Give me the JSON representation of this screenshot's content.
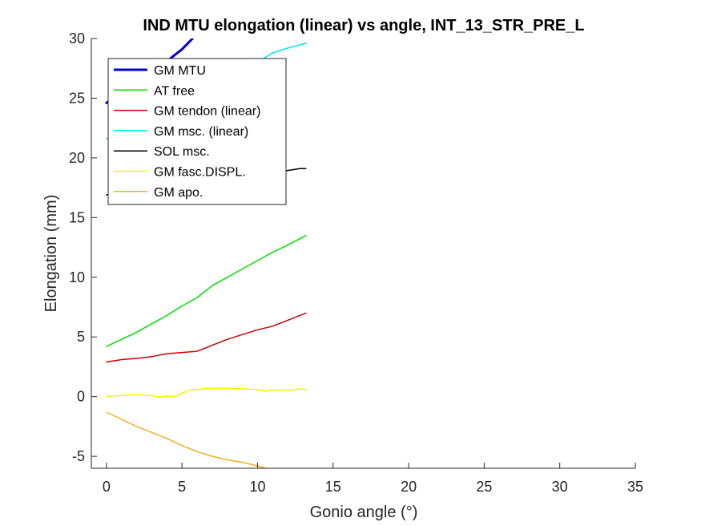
{
  "chart_data": {
    "type": "line",
    "title": "IND MTU elongation (linear) vs angle, INT_13_STR_PRE_L",
    "xlabel": "Gonio angle (°)",
    "ylabel": "Elongation (mm)",
    "xlim": [
      -1,
      35
    ],
    "ylim": [
      -6,
      30
    ],
    "xticks": [
      0,
      5,
      10,
      15,
      20,
      25,
      30,
      35
    ],
    "yticks": [
      -5,
      0,
      5,
      10,
      15,
      20,
      25,
      30
    ],
    "grid": false,
    "legend_position": "top-left",
    "series": [
      {
        "name": "GM MTU",
        "color": "#0000CD",
        "line_width": 3,
        "x": [
          0,
          1,
          2,
          3,
          4,
          5,
          5.7
        ],
        "y": [
          24.6,
          25.5,
          26.4,
          27.3,
          28.1,
          29.1,
          30.0
        ]
      },
      {
        "name": "AT free",
        "color": "#00E000",
        "line_width": 1.5,
        "x": [
          0,
          1,
          2,
          3,
          4,
          5,
          6,
          7,
          8,
          9,
          10,
          11,
          12,
          13.2
        ],
        "y": [
          4.2,
          4.8,
          5.4,
          6.1,
          6.8,
          7.6,
          8.3,
          9.3,
          10.0,
          10.7,
          11.4,
          12.1,
          12.7,
          13.5
        ]
      },
      {
        "name": "GM tendon (linear)",
        "color": "#CC0000",
        "line_width": 1.5,
        "x": [
          0,
          1,
          2,
          3,
          4,
          5,
          6,
          7,
          8,
          9,
          10,
          11,
          12,
          13.2
        ],
        "y": [
          2.9,
          3.1,
          3.2,
          3.35,
          3.6,
          3.7,
          3.8,
          4.3,
          4.8,
          5.2,
          5.6,
          5.9,
          6.4,
          7.0
        ]
      },
      {
        "name": "GM msc. (linear)",
        "color": "#00E5EE",
        "line_width": 1.5,
        "x": [
          0,
          0.6,
          10.5,
          11,
          12,
          13.2
        ],
        "y": [
          21.6,
          21.9,
          28.4,
          28.8,
          29.2,
          29.6
        ]
      },
      {
        "name": "SOL msc.",
        "color": "#000000",
        "line_width": 1.5,
        "x": [
          0,
          0.4,
          11.8,
          12.3,
          12.8,
          13.2
        ],
        "y": [
          16.9,
          17.0,
          18.9,
          19.0,
          19.1,
          19.1
        ]
      },
      {
        "name": "GM fasc.DISPL.",
        "color": "#F5F500",
        "line_width": 1.5,
        "x": [
          0,
          0.5,
          1,
          2,
          3,
          3.5,
          4,
          4.5,
          5,
          5.5,
          6,
          7,
          8,
          9,
          10,
          10.5,
          11,
          12,
          13,
          13.2
        ],
        "y": [
          0.0,
          0.05,
          0.1,
          0.15,
          0.1,
          -0.05,
          0.05,
          0.0,
          0.3,
          0.55,
          0.6,
          0.7,
          0.7,
          0.65,
          0.6,
          0.45,
          0.55,
          0.55,
          0.65,
          0.55
        ]
      },
      {
        "name": "GM apo.",
        "color": "#EDB120",
        "line_width": 1.5,
        "x": [
          0,
          0.5,
          1,
          2,
          3,
          4,
          5,
          6,
          7,
          8,
          9,
          10,
          10.5
        ],
        "y": [
          -1.3,
          -1.6,
          -1.9,
          -2.5,
          -3.0,
          -3.5,
          -4.1,
          -4.6,
          -5.0,
          -5.3,
          -5.5,
          -5.8,
          -6.0
        ]
      }
    ]
  }
}
